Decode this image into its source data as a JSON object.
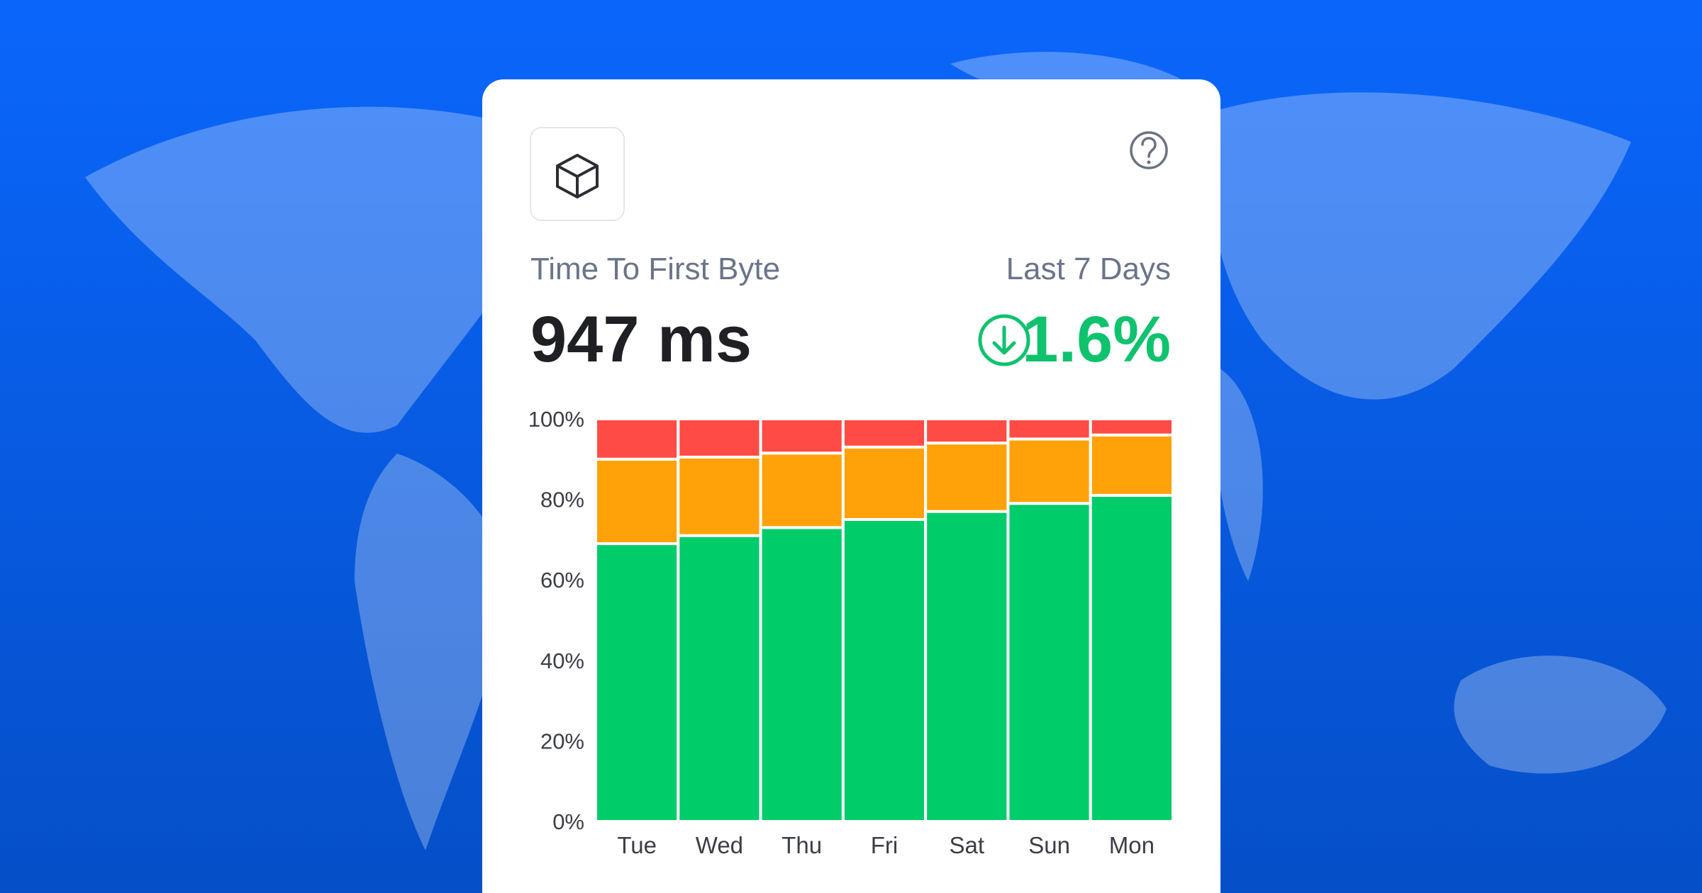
{
  "chart_data": {
    "type": "bar",
    "stacked": true,
    "title": "Time To First Byte",
    "subtitle": "Last 7 Days",
    "headline_value": "947 ms",
    "change": "1.6%",
    "change_color": "#0fc26e",
    "categories": [
      "Tue",
      "Wed",
      "Thu",
      "Fri",
      "Sat",
      "Sun",
      "Mon"
    ],
    "series": [
      {
        "color": "#00cc6a",
        "values": [
          69,
          71,
          73,
          75,
          77,
          79,
          81
        ]
      },
      {
        "color": "#ffa20a",
        "values": [
          21,
          19.5,
          18.5,
          18,
          17,
          16,
          15
        ]
      },
      {
        "color": "#ff4b45",
        "values": [
          10,
          9.5,
          8.5,
          7,
          6,
          5,
          4
        ]
      }
    ],
    "ylim": [
      0,
      100
    ],
    "yticks": [
      {
        "value": 0,
        "label": "0%"
      },
      {
        "value": 20,
        "label": "20%"
      },
      {
        "value": 40,
        "label": "40%"
      },
      {
        "value": 60,
        "label": "60%"
      },
      {
        "value": 80,
        "label": "80%"
      },
      {
        "value": 100,
        "label": "100%"
      }
    ],
    "grid": false
  }
}
